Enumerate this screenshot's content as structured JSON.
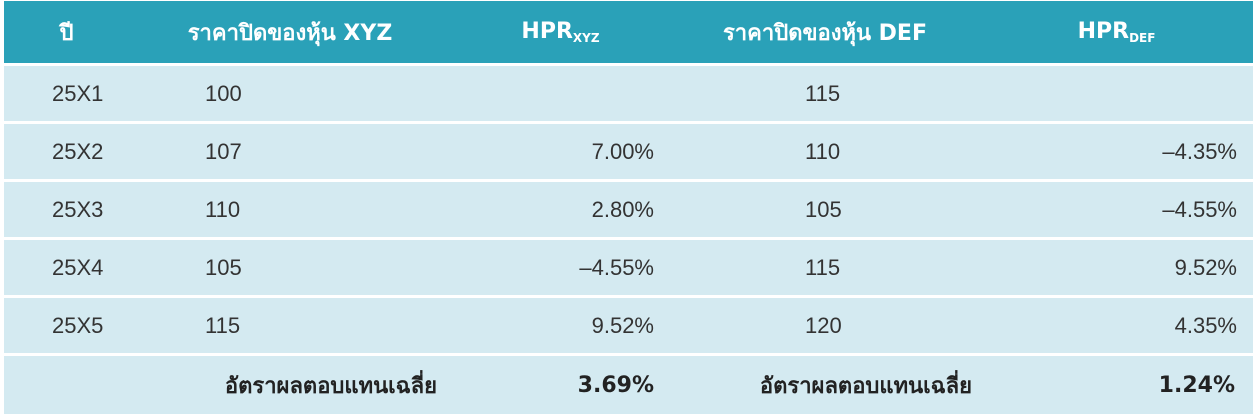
{
  "header": {
    "year": "ปี",
    "price_xyz": "ราคาปิดของหุ้น XYZ",
    "hpr_xyz_main": "HPR",
    "hpr_xyz_sub": "XYZ",
    "price_def": "ราคาปิดของหุ้น DEF",
    "hpr_def_main": "HPR",
    "hpr_def_sub": "DEF"
  },
  "rows": [
    {
      "year": "25X1",
      "price_xyz": "100",
      "hpr_xyz": "",
      "price_def": "115",
      "hpr_def": ""
    },
    {
      "year": "25X2",
      "price_xyz": "107",
      "hpr_xyz": "7.00%",
      "price_def": "110",
      "hpr_def": "–4.35%"
    },
    {
      "year": "25X3",
      "price_xyz": "110",
      "hpr_xyz": "2.80%",
      "price_def": "105",
      "hpr_def": "–4.55%"
    },
    {
      "year": "25X4",
      "price_xyz": "105",
      "hpr_xyz": "–4.55%",
      "price_def": "115",
      "hpr_def": "9.52%"
    },
    {
      "year": "25X5",
      "price_xyz": "115",
      "hpr_xyz": "9.52%",
      "price_def": "120",
      "hpr_def": "4.35%"
    }
  ],
  "summary": {
    "label_xyz": "อัตราผลตอบแทนเฉลี่ย",
    "avg_xyz": "3.69%",
    "label_def": "อัตราผลตอบแทนเฉลี่ย",
    "avg_def": "1.24%"
  },
  "colors": {
    "header_bg": "#2aa1b8",
    "row_bg": "#d4eaf1",
    "header_text": "#ffffff"
  }
}
